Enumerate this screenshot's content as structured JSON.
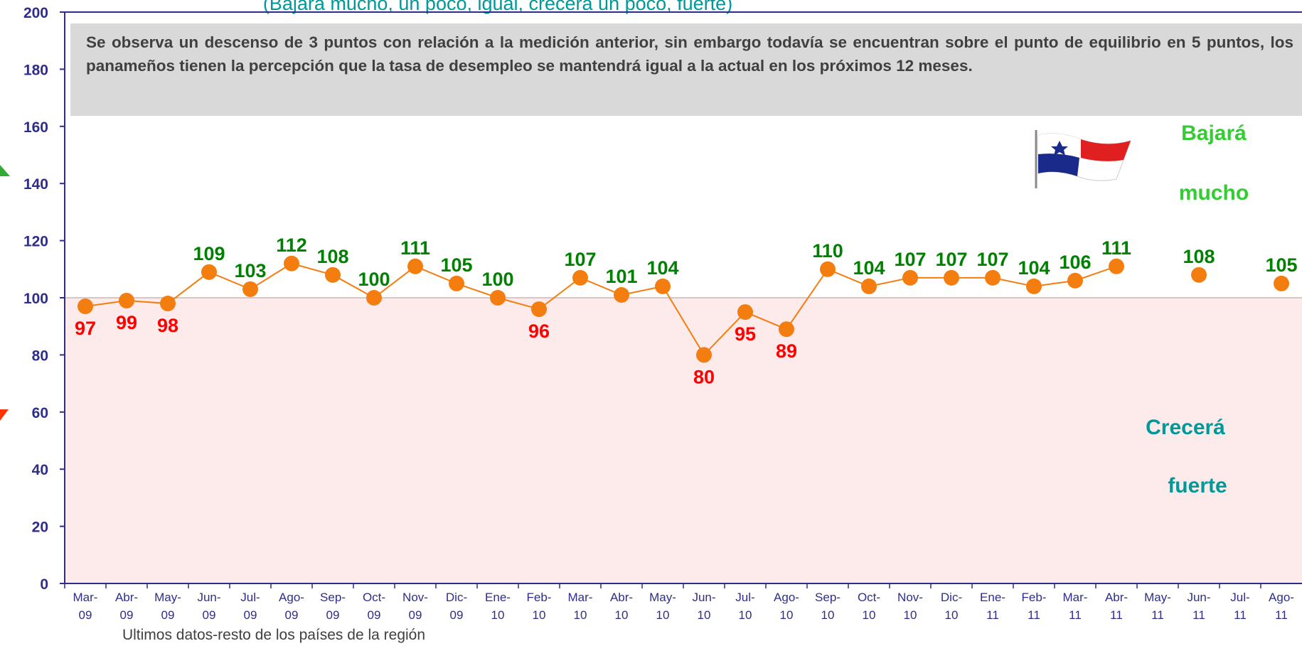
{
  "chart_data": {
    "type": "line",
    "title": "(Bajará mucho, un poco, igual, crecerá un poco, fuerte)",
    "annotation": "Se observa un descenso de 3 puntos con relación a la medición anterior, sin embargo todavía se encuentran sobre el punto de equilibrio en 5 puntos, los panameños tienen la percepción que la tasa de desempleo se mantendrá igual a la actual  en los próximos  12 meses.",
    "zone_labels": {
      "top": [
        "Bajará",
        "mucho"
      ],
      "bottom": [
        "Crecerá",
        "fuerte"
      ]
    },
    "footnote": "Ultimos  datos-resto de los países de la región",
    "categories": [
      "Mar-09",
      "Abr-09",
      "May-09",
      "Jun-09",
      "Jul-09",
      "Ago-09",
      "Sep-09",
      "Oct-09",
      "Nov-09",
      "Dic-09",
      "Ene-10",
      "Feb-10",
      "Mar-10",
      "Abr-10",
      "May-10",
      "Jun-10",
      "Jul-10",
      "Ago-10",
      "Sep-10",
      "Oct-10",
      "Nov-10",
      "Dic-10",
      "Ene-11",
      "Feb-11",
      "Mar-11",
      "Abr-11",
      "May-11",
      "Jun-11",
      "Jul-11",
      "Ago-11"
    ],
    "series": [
      {
        "color": "#f47d10",
        "values": [
          97,
          99,
          98,
          109,
          103,
          112,
          108,
          100,
          111,
          105,
          100,
          96,
          107,
          101,
          104,
          80,
          95,
          89,
          110,
          104,
          107,
          107,
          107,
          104,
          106,
          111,
          null,
          108,
          null,
          105
        ]
      }
    ],
    "reference_line": 100,
    "label_colors": {
      "above": "#008000",
      "below": "#ff0000"
    },
    "ylim": [
      0,
      200
    ],
    "yticks": [
      0,
      20,
      40,
      60,
      80,
      100,
      120,
      140,
      160,
      180,
      200
    ]
  }
}
